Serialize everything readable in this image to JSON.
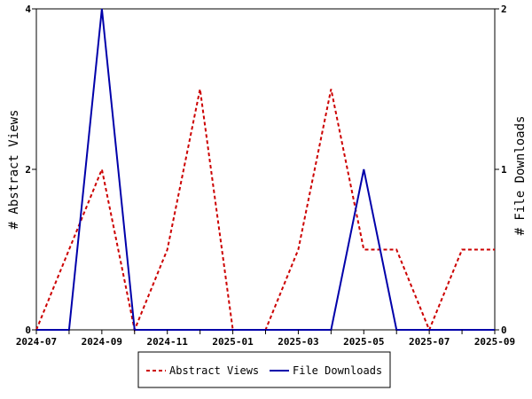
{
  "chart_data": {
    "type": "line",
    "x_labels": [
      "2024-07",
      "2024-08",
      "2024-09",
      "2024-10",
      "2024-11",
      "2024-12",
      "2025-01",
      "2025-02",
      "2025-03",
      "2025-04",
      "2025-05",
      "2025-06",
      "2025-07",
      "2025-08",
      "2025-09"
    ],
    "x_tick_labels": [
      "2024-07",
      "2024-09",
      "2024-11",
      "2025-01",
      "2025-03",
      "2025-05",
      "2025-07",
      "2025-09"
    ],
    "y_left_label": "# Abstract Views",
    "y_right_label": "# File Downloads",
    "y_left_ticks": [
      "0",
      "2",
      "4"
    ],
    "y_right_ticks": [
      "0",
      "1",
      "2"
    ],
    "y_left_lim": [
      0,
      4
    ],
    "y_right_lim": [
      0,
      2
    ],
    "series": [
      {
        "name": "Abstract Views",
        "axis": "left",
        "color": "#cc0000",
        "style": "dashed",
        "values": [
          0,
          1,
          2,
          0,
          1,
          3,
          0,
          0,
          1,
          3,
          1,
          1,
          0,
          1,
          1
        ]
      },
      {
        "name": "File Downloads",
        "axis": "right",
        "color": "#0000aa",
        "style": "solid",
        "values": [
          0,
          0,
          2,
          0,
          0,
          0,
          0,
          0,
          0,
          0,
          1,
          0,
          0,
          0,
          0
        ]
      }
    ],
    "legend_position": "bottom-center",
    "grid": false
  }
}
